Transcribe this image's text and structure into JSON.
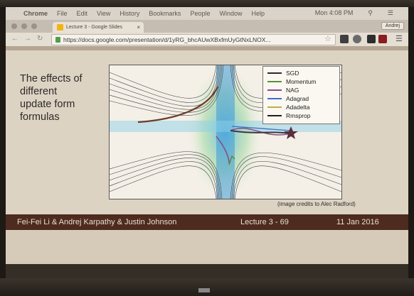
{
  "menubar": {
    "app": "Chrome",
    "items": [
      "File",
      "Edit",
      "View",
      "History",
      "Bookmarks",
      "People",
      "Window",
      "Help"
    ],
    "clock": "Mon 4:08 PM"
  },
  "tab": {
    "title": "Lecture 3 - Google Slides",
    "close": "×"
  },
  "user": {
    "name": "Andrej"
  },
  "address": {
    "url": "https://docs.google.com/presentation/d/1yRG_bhcAUwXBxfmUyGtNxLNOX..."
  },
  "slide": {
    "title_lines": [
      "The effects of",
      "different",
      "update form",
      "formulas"
    ],
    "legend": [
      {
        "label": "SGD",
        "color": "#2b2b2b"
      },
      {
        "label": "Momentum",
        "color": "#5a8d3c"
      },
      {
        "label": "NAG",
        "color": "#8a4a8c"
      },
      {
        "label": "Adagrad",
        "color": "#3a6fc7"
      },
      {
        "label": "Adadelta",
        "color": "#b9b04a"
      },
      {
        "label": "Rmsprop",
        "color": "#1f1f1f"
      }
    ],
    "credits": "(image credits to Alec Radford)"
  },
  "footer": {
    "names": "Fei-Fei Li & Andrej Karpathy & Justin Johnson",
    "lecture": "Lecture 3 - 69",
    "date": "11 Jan 2016"
  }
}
